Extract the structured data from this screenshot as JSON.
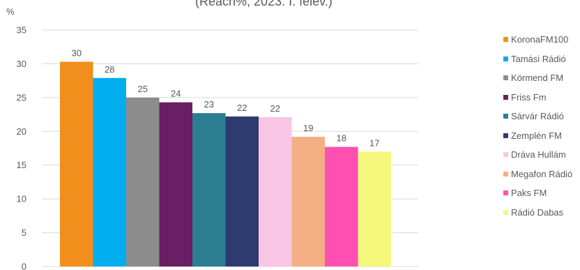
{
  "chart_data": {
    "type": "bar",
    "subtitle": "(Reach%, 2023. I. félév.)",
    "ylabel": "%",
    "ylim": [
      0,
      35
    ],
    "yticks": [
      0,
      5,
      10,
      15,
      20,
      25,
      30,
      35
    ],
    "grid": true,
    "legend_position": "right",
    "series": [
      {
        "name": "KoronaFM100",
        "value": 30.3,
        "label": "30",
        "color": "#F28E1C"
      },
      {
        "name": "Tamási Rádió",
        "value": 27.9,
        "label": "28",
        "color": "#00ADEF"
      },
      {
        "name": "Körmend FM",
        "value": 25.0,
        "label": "25",
        "color": "#8C8C8C"
      },
      {
        "name": "Friss Fm",
        "value": 24.3,
        "label": "24",
        "color": "#6A1E63"
      },
      {
        "name": "Sárvár Rádió",
        "value": 22.7,
        "label": "23",
        "color": "#2C7E91"
      },
      {
        "name": "Zemplén FM",
        "value": 22.2,
        "label": "22",
        "color": "#2E3B6E"
      },
      {
        "name": "Dráva Hullám",
        "value": 22.1,
        "label": "22",
        "color": "#F9C6E6"
      },
      {
        "name": "Megafon Rádió",
        "value": 19.2,
        "label": "19",
        "color": "#F5AF84"
      },
      {
        "name": "Paks FM",
        "value": 17.7,
        "label": "18",
        "color": "#FF4FB0"
      },
      {
        "name": "Rádió Dabas",
        "value": 17.0,
        "label": "17",
        "color": "#F4F77B"
      }
    ]
  }
}
